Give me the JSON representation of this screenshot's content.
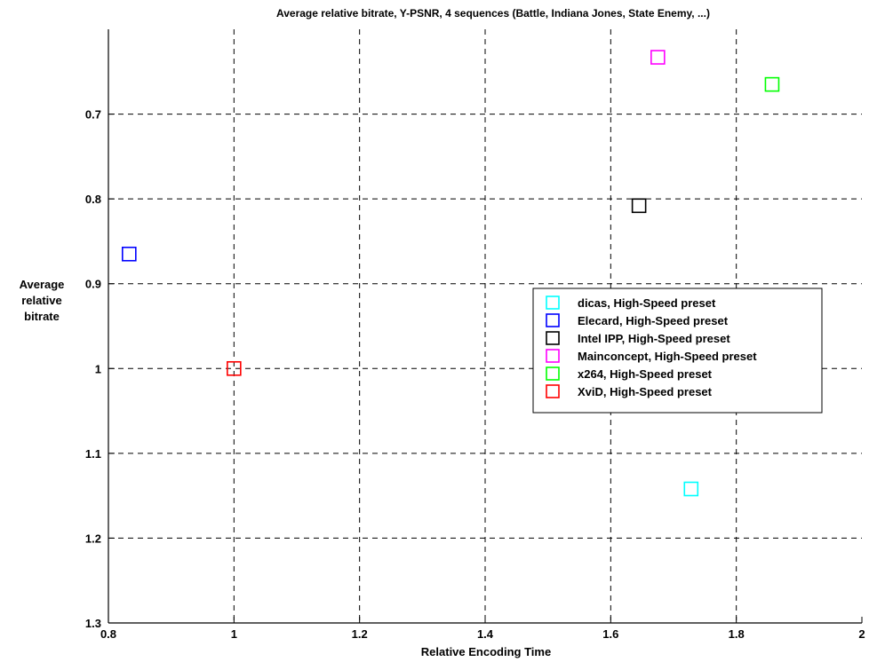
{
  "chart_data": {
    "type": "scatter",
    "title": "Average relative bitrate, Y-PSNR, 4 sequences (Battle, Indiana Jones, State Enemy, ...)",
    "xlabel": "Relative Encoding Time",
    "ylabel_lines": [
      "Average",
      "relative",
      "bitrate"
    ],
    "xlim": [
      0.8,
      2
    ],
    "ylim": [
      0.6,
      1.3
    ],
    "y_reversed": true,
    "x_ticks": [
      "0.8",
      "1",
      "1.2",
      "1.4",
      "1.6",
      "1.8",
      "2"
    ],
    "y_ticks": [
      "0.7",
      "0.8",
      "0.9",
      "1",
      "1.1",
      "1.2",
      "1.3"
    ],
    "grid": true,
    "legend_position": "center-right",
    "marker": "square",
    "series": [
      {
        "name": "dicas, High-Speed preset",
        "color": "#00ffff",
        "x": 1.728,
        "y": 1.142
      },
      {
        "name": "Elecard, High-Speed preset",
        "color": "#0000ff",
        "x": 0.833,
        "y": 0.865
      },
      {
        "name": "Intel IPP, High-Speed preset",
        "color": "#000000",
        "x": 1.645,
        "y": 0.808
      },
      {
        "name": "Mainconcept, High-Speed preset",
        "color": "#ff00ff",
        "x": 1.675,
        "y": 0.633
      },
      {
        "name": "x264, High-Speed preset",
        "color": "#00ff00",
        "x": 1.857,
        "y": 0.665
      },
      {
        "name": "XviD, High-Speed preset",
        "color": "#ff0000",
        "x": 1.0,
        "y": 1.0
      }
    ]
  }
}
